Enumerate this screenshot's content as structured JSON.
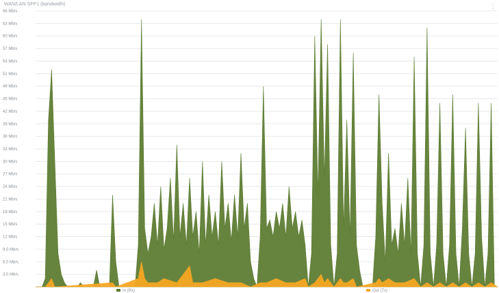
{
  "title": "WAN/LAN SFP1 (bandwidth)",
  "menu_icon": "vertical-dots-icon",
  "chart_data": {
    "type": "area",
    "ylabel": "",
    "xlabel": "",
    "ylim": [
      0,
      66
    ],
    "yunit": "Mbps",
    "yticks": [
      "66 Mb/s",
      "63 Mb/s",
      "60 Mb/s",
      "57 Mb/s",
      "54 Mb/s",
      "51 Mb/s",
      "48 Mb/s",
      "45 Mb/s",
      "42 Mb/s",
      "39 Mb/s",
      "36 Mb/s",
      "33 Mb/s",
      "30 Mb/s",
      "27 Mb/s",
      "24 Mb/s",
      "21 Mb/s",
      "18 Mb/s",
      "15 Mb/s",
      "12 Mb/s",
      "9.0 Mb/s",
      "6.0 Mb/s",
      "3.0 Mb/s"
    ],
    "ytick_values": [
      66,
      63,
      60,
      57,
      54,
      51,
      48,
      45,
      42,
      39,
      36,
      33,
      30,
      27,
      24,
      21,
      18,
      15,
      12,
      9,
      6,
      3
    ],
    "grid": true,
    "legend_position": "bottom",
    "series": [
      {
        "name": "In (Rx)",
        "color": "#5a7a2e",
        "points": [
          [
            0,
            0
          ],
          [
            2,
            0
          ],
          [
            3,
            2
          ],
          [
            4,
            40
          ],
          [
            5,
            52
          ],
          [
            6,
            30
          ],
          [
            7,
            8
          ],
          [
            8,
            3
          ],
          [
            9,
            1
          ],
          [
            10,
            0
          ],
          [
            11,
            0
          ],
          [
            12,
            0
          ],
          [
            13,
            0
          ],
          [
            14,
            1
          ],
          [
            15,
            0
          ],
          [
            16,
            0
          ],
          [
            17,
            0
          ],
          [
            18,
            0
          ],
          [
            19,
            4
          ],
          [
            20,
            0
          ],
          [
            21,
            0
          ],
          [
            22,
            0
          ],
          [
            23,
            0
          ],
          [
            24,
            22
          ],
          [
            25,
            6
          ],
          [
            26,
            0
          ],
          [
            27,
            0
          ],
          [
            28,
            0
          ],
          [
            29,
            0
          ],
          [
            30,
            0
          ],
          [
            31,
            0
          ],
          [
            32,
            10
          ],
          [
            33,
            64
          ],
          [
            34,
            14
          ],
          [
            35,
            8
          ],
          [
            36,
            12
          ],
          [
            37,
            20
          ],
          [
            38,
            10
          ],
          [
            39,
            24
          ],
          [
            40,
            9
          ],
          [
            41,
            14
          ],
          [
            42,
            26
          ],
          [
            43,
            11
          ],
          [
            44,
            34
          ],
          [
            45,
            12
          ],
          [
            46,
            20
          ],
          [
            47,
            10
          ],
          [
            48,
            26
          ],
          [
            49,
            12
          ],
          [
            50,
            18
          ],
          [
            51,
            8
          ],
          [
            52,
            30
          ],
          [
            53,
            10
          ],
          [
            54,
            22
          ],
          [
            55,
            12
          ],
          [
            56,
            18
          ],
          [
            57,
            10
          ],
          [
            58,
            30
          ],
          [
            59,
            14
          ],
          [
            60,
            20
          ],
          [
            61,
            11
          ],
          [
            62,
            22
          ],
          [
            63,
            12
          ],
          [
            64,
            32
          ],
          [
            65,
            14
          ],
          [
            66,
            20
          ],
          [
            67,
            6
          ],
          [
            68,
            2
          ],
          [
            69,
            0
          ],
          [
            70,
            12
          ],
          [
            71,
            48
          ],
          [
            72,
            14
          ],
          [
            73,
            16
          ],
          [
            74,
            12
          ],
          [
            75,
            18
          ],
          [
            76,
            14
          ],
          [
            77,
            20
          ],
          [
            78,
            12
          ],
          [
            79,
            24
          ],
          [
            80,
            14
          ],
          [
            81,
            18
          ],
          [
            82,
            12
          ],
          [
            83,
            16
          ],
          [
            84,
            10
          ],
          [
            85,
            0
          ],
          [
            86,
            8
          ],
          [
            87,
            60
          ],
          [
            88,
            22
          ],
          [
            89,
            64
          ],
          [
            90,
            26
          ],
          [
            91,
            58
          ],
          [
            92,
            10
          ],
          [
            93,
            0
          ],
          [
            94,
            8
          ],
          [
            95,
            64
          ],
          [
            96,
            14
          ],
          [
            97,
            40
          ],
          [
            98,
            12
          ],
          [
            99,
            56
          ],
          [
            100,
            10
          ],
          [
            101,
            4
          ],
          [
            102,
            0
          ],
          [
            103,
            0
          ],
          [
            104,
            0
          ],
          [
            105,
            0
          ],
          [
            106,
            12
          ],
          [
            107,
            46
          ],
          [
            108,
            20
          ],
          [
            109,
            6
          ],
          [
            110,
            32
          ],
          [
            111,
            10
          ],
          [
            112,
            14
          ],
          [
            113,
            8
          ],
          [
            114,
            20
          ],
          [
            115,
            10
          ],
          [
            116,
            26
          ],
          [
            117,
            8
          ],
          [
            118,
            55
          ],
          [
            119,
            8
          ],
          [
            120,
            0
          ],
          [
            121,
            10
          ],
          [
            122,
            62
          ],
          [
            123,
            8
          ],
          [
            124,
            0
          ],
          [
            125,
            10
          ],
          [
            126,
            44
          ],
          [
            127,
            8
          ],
          [
            128,
            0
          ],
          [
            129,
            10
          ],
          [
            130,
            46
          ],
          [
            131,
            8
          ],
          [
            132,
            0
          ],
          [
            133,
            14
          ],
          [
            134,
            38
          ],
          [
            135,
            8
          ],
          [
            136,
            0
          ],
          [
            137,
            8
          ],
          [
            138,
            44
          ],
          [
            139,
            12
          ],
          [
            140,
            0
          ],
          [
            141,
            8
          ],
          [
            142,
            44
          ],
          [
            143,
            0
          ],
          [
            144,
            0
          ]
        ]
      },
      {
        "name": "Out (Tx)",
        "color": "#f5a623",
        "points": [
          [
            0,
            0
          ],
          [
            3,
            0
          ],
          [
            4,
            1
          ],
          [
            5,
            2
          ],
          [
            6,
            0
          ],
          [
            24,
            1
          ],
          [
            25,
            0
          ],
          [
            32,
            2
          ],
          [
            33,
            6
          ],
          [
            34,
            2
          ],
          [
            35,
            1
          ],
          [
            38,
            1
          ],
          [
            40,
            2
          ],
          [
            44,
            1
          ],
          [
            48,
            5
          ],
          [
            49,
            1
          ],
          [
            52,
            1
          ],
          [
            56,
            2
          ],
          [
            60,
            1
          ],
          [
            64,
            1
          ],
          [
            67,
            0
          ],
          [
            70,
            1
          ],
          [
            72,
            1
          ],
          [
            75,
            2
          ],
          [
            78,
            1
          ],
          [
            81,
            1
          ],
          [
            84,
            2
          ],
          [
            85,
            0
          ],
          [
            87,
            1
          ],
          [
            88,
            2
          ],
          [
            89,
            3
          ],
          [
            90,
            1
          ],
          [
            91,
            2
          ],
          [
            93,
            0
          ],
          [
            94,
            1
          ],
          [
            95,
            2
          ],
          [
            96,
            1
          ],
          [
            97,
            1
          ],
          [
            99,
            2
          ],
          [
            100,
            0
          ],
          [
            106,
            1
          ],
          [
            107,
            2
          ],
          [
            108,
            1
          ],
          [
            110,
            2
          ],
          [
            112,
            1
          ],
          [
            115,
            1
          ],
          [
            118,
            2
          ],
          [
            120,
            0
          ],
          [
            122,
            1
          ],
          [
            124,
            0
          ],
          [
            126,
            1
          ],
          [
            128,
            0
          ],
          [
            130,
            1
          ],
          [
            132,
            0
          ],
          [
            134,
            1
          ],
          [
            136,
            0
          ],
          [
            138,
            1
          ],
          [
            140,
            0
          ],
          [
            142,
            1
          ],
          [
            144,
            0
          ]
        ]
      }
    ]
  },
  "legend": [
    {
      "label": "In (Rx)",
      "color": "#5a7a2e"
    },
    {
      "label": "Out (Tx)",
      "color": "#f5a623"
    }
  ]
}
